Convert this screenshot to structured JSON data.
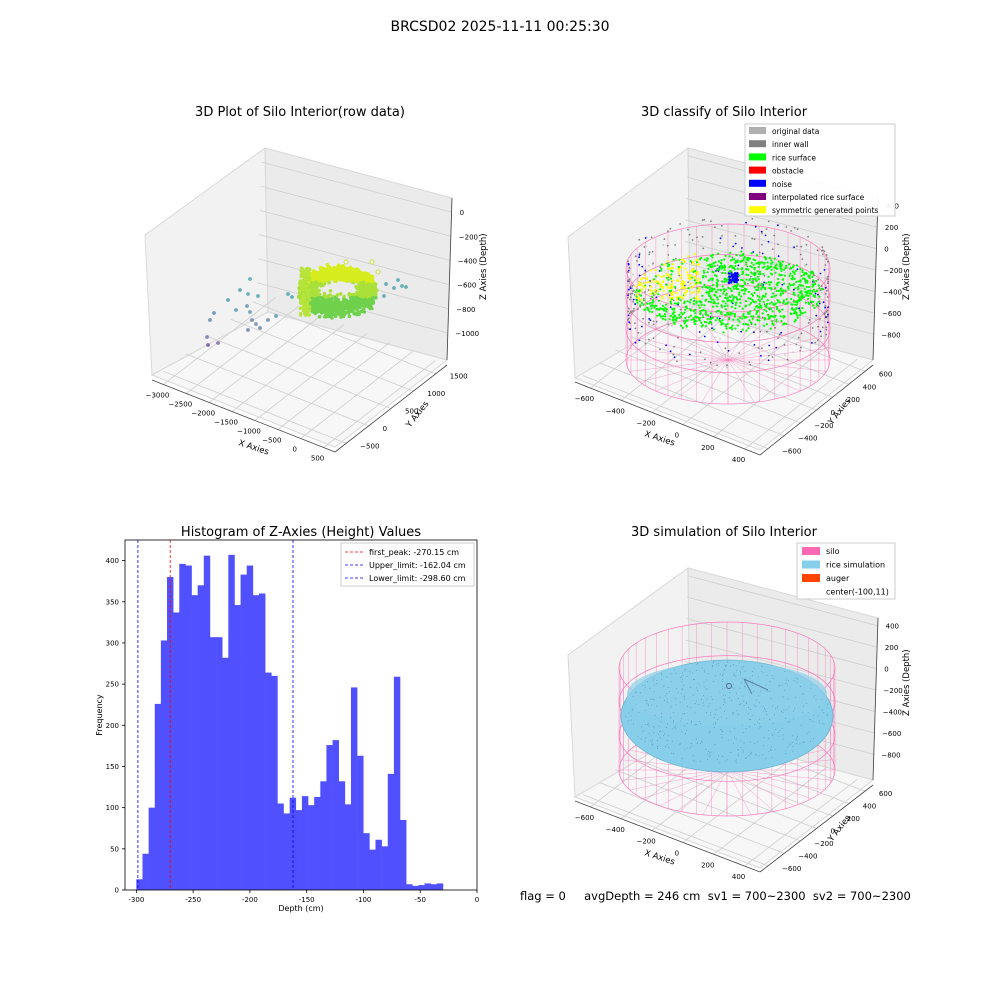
{
  "figure": {
    "suptitle": "BRCSD02 2025-11-11 00:25:30",
    "footer": "flag = 0     avgDepth = 246 cm  sv1 = 700~2300  sv2 = 700~2300"
  },
  "colors": {
    "histogram_bar": "#5050ff",
    "first_peak_line": "#ff0000",
    "limit_lines": "#0000ff",
    "silo_mesh": "#ff69b4",
    "rice_simulation": "#87ceeb",
    "auger": "#ff4500",
    "rice_surface": "#00ff00",
    "noise": "#0000ff",
    "inner_wall": "#808080",
    "symmetric_points": "#ffff00",
    "raw_gradient_high": "#d8ef1c",
    "raw_gradient_low": "#55cc55"
  },
  "chart_data": [
    {
      "type": "scatter",
      "projection": "3d",
      "title": "3D Plot of Silo Interior(row data)",
      "xlabel": "X Axies",
      "ylabel": "Y Axies",
      "zlabel": "Z Axies (Depth)",
      "x_ticks": [
        "−3000",
        "−2500",
        "−2000",
        "−1500",
        "−1000",
        "−500",
        "0",
        "500"
      ],
      "y_ticks": [
        "−500",
        "0",
        "500",
        "1000",
        "1500"
      ],
      "z_ticks": [
        "0",
        "−200",
        "−400",
        "−600",
        "−800",
        "−1000"
      ],
      "xlim": [
        -3200,
        600
      ],
      "ylim": [
        -700,
        1700
      ],
      "zlim": [
        -1050,
        50
      ],
      "colormap": "viridis by depth",
      "grid": true
    },
    {
      "type": "scatter",
      "projection": "3d",
      "title": "3D classify of Silo Interior",
      "xlabel": "X Axies",
      "ylabel": "Y Axies",
      "zlabel": "Z Axies (Depth)",
      "x_ticks": [
        "−600",
        "−400",
        "−200",
        "0",
        "200",
        "400"
      ],
      "y_ticks": [
        "−600",
        "−400",
        "−200",
        "0",
        "200",
        "400",
        "600"
      ],
      "z_ticks": [
        "400",
        "200",
        "0",
        "−200",
        "−400",
        "−600",
        "−800"
      ],
      "legend": [
        {
          "label": "original data",
          "color": "#b0b0b0"
        },
        {
          "label": "inner wall",
          "color": "#808080"
        },
        {
          "label": "rice surface",
          "color": "#00ff00"
        },
        {
          "label": "obstacle",
          "color": "#ff0000"
        },
        {
          "label": "noise",
          "color": "#0000ff"
        },
        {
          "label": "interpolated rice surface",
          "color": "#800080"
        },
        {
          "label": "symmetric generated points",
          "color": "#ffff00"
        }
      ],
      "legend_loc": "upper right",
      "grid": true
    },
    {
      "type": "bar",
      "title": "Histogram of Z-Axies (Height) Values",
      "xlabel": "Depth (cm)",
      "ylabel": "Frequency",
      "xlim": [
        -310,
        0
      ],
      "ylim": [
        0,
        425
      ],
      "x_ticks": [
        -300,
        -250,
        -200,
        -150,
        -100,
        -50,
        0
      ],
      "y_ticks": [
        0,
        50,
        100,
        150,
        200,
        250,
        300,
        350,
        400
      ],
      "bin_start": -300,
      "bin_width": 5.4,
      "values": [
        13,
        44,
        100,
        226,
        303,
        380,
        337,
        396,
        394,
        358,
        370,
        406,
        307,
        307,
        282,
        407,
        346,
        383,
        394,
        358,
        360,
        264,
        260,
        105,
        93,
        112,
        97,
        114,
        103,
        113,
        132,
        176,
        182,
        132,
        104,
        246,
        163,
        69,
        49,
        61,
        53,
        141,
        259,
        85,
        7,
        5,
        6,
        8,
        7,
        8
      ],
      "lines": [
        {
          "label": "first_peak: -270.15 cm",
          "x": -270.15,
          "color": "#ff0000"
        },
        {
          "label": "Upper_limit: -162.04 cm",
          "x": -162.04,
          "color": "#0000ff"
        },
        {
          "label": "Lower_limit: -298.60 cm",
          "x": -298.6,
          "color": "#0000ff"
        }
      ],
      "legend_loc": "upper right"
    },
    {
      "type": "surface",
      "projection": "3d",
      "title": "3D simulation of Silo Interior",
      "xlabel": "X Axies",
      "ylabel": "Y Axies",
      "zlabel": "Z Axies (Depth)",
      "x_ticks": [
        "−600",
        "−400",
        "−200",
        "0",
        "200",
        "400"
      ],
      "y_ticks": [
        "−600",
        "−400",
        "−200",
        "0",
        "200",
        "400",
        "600"
      ],
      "z_ticks": [
        "400",
        "200",
        "0",
        "−200",
        "−400",
        "−600",
        "−800"
      ],
      "legend": [
        {
          "label": "silo",
          "color": "#ff69b4"
        },
        {
          "label": "rice simulation",
          "color": "#87ceeb"
        },
        {
          "label": "auger",
          "color": "#ff4500"
        },
        {
          "label": "center(-100,11)",
          "color": ""
        }
      ],
      "legend_loc": "upper right",
      "grid": true
    }
  ]
}
